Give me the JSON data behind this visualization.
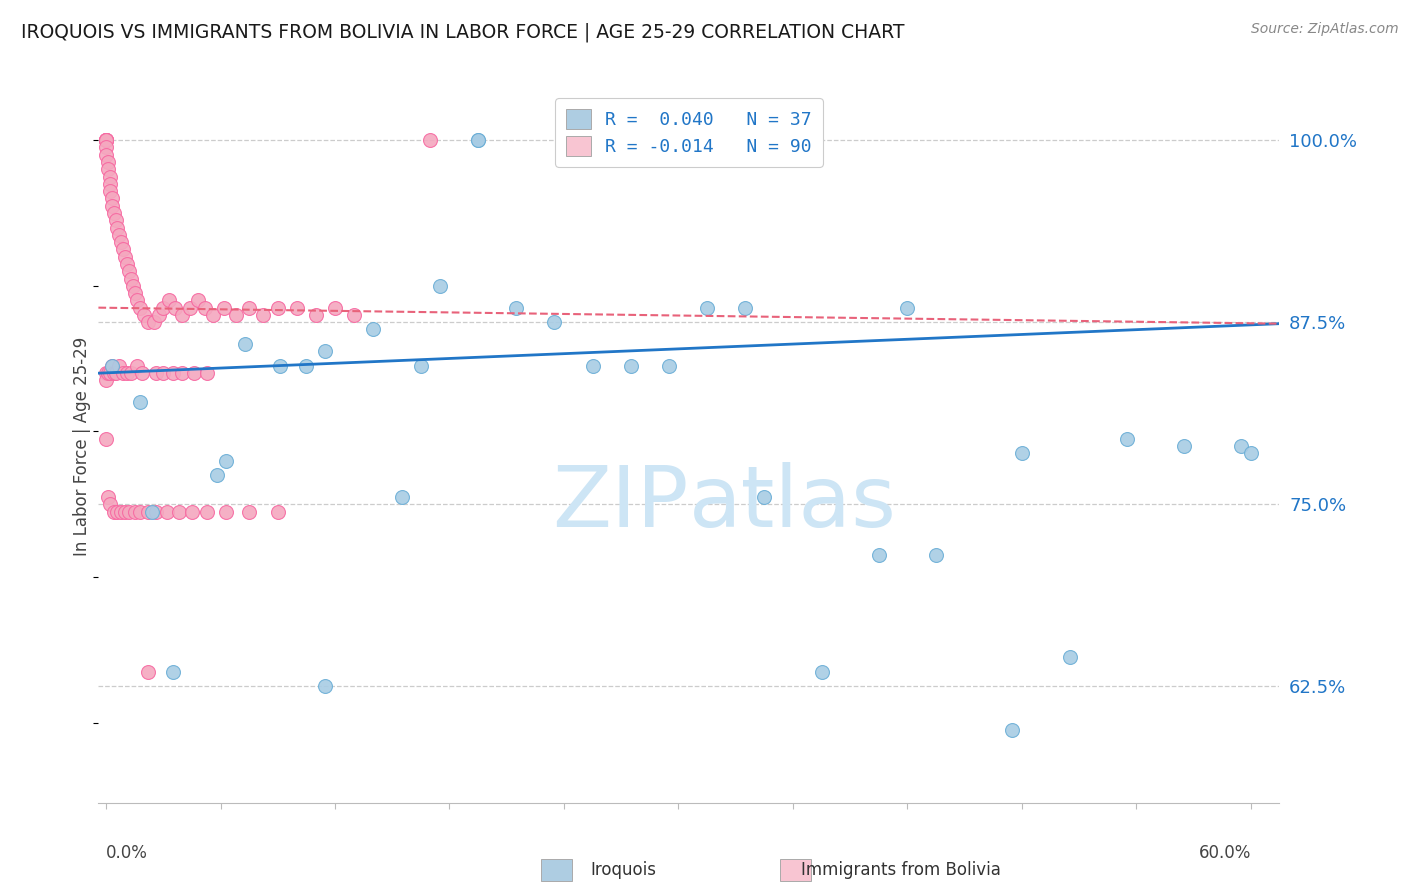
{
  "title": "IROQUOIS VS IMMIGRANTS FROM BOLIVIA IN LABOR FORCE | AGE 25-29 CORRELATION CHART",
  "source": "Source: ZipAtlas.com",
  "ylabel": "In Labor Force | Age 25-29",
  "ytick_values": [
    0.625,
    0.75,
    0.875,
    1.0
  ],
  "ytick_labels": [
    "62.5%",
    "75.0%",
    "87.5%",
    "100.0%"
  ],
  "xmin": -0.004,
  "xmax": 0.615,
  "ymin": 0.545,
  "ymax": 1.035,
  "blue_color": "#a8cce4",
  "pink_color": "#f4a8bf",
  "blue_edge": "#6aaed6",
  "pink_edge": "#f768a1",
  "blue_line_color": "#2176c7",
  "pink_line_color": "#e8627a",
  "legend_blue_fill": "#aecde2",
  "legend_pink_fill": "#f8c5d2",
  "watermark_color": "#cde5f5",
  "legend_text_color": "#2176c7",
  "right_tick_color": "#2176c7",
  "gridline_color": "#cccccc",
  "background_color": "#ffffff",
  "legend_text_blue": "R =  0.040   N = 37",
  "legend_text_pink": "R = -0.014   N = 90",
  "R_blue": 0.04,
  "N_blue": 37,
  "R_pink": -0.014,
  "N_pink": 90,
  "blue_x": [
    0.003,
    0.018,
    0.024,
    0.035,
    0.058,
    0.063,
    0.073,
    0.091,
    0.105,
    0.115,
    0.14,
    0.155,
    0.165,
    0.175,
    0.195,
    0.215,
    0.235,
    0.255,
    0.275,
    0.295,
    0.315,
    0.345,
    0.375,
    0.405,
    0.435,
    0.475,
    0.505,
    0.535,
    0.565,
    0.595,
    0.115,
    0.195,
    0.245,
    0.335,
    0.42,
    0.48,
    0.6
  ],
  "blue_y": [
    0.845,
    0.82,
    0.745,
    0.635,
    0.77,
    0.78,
    0.86,
    0.845,
    0.845,
    0.855,
    0.87,
    0.755,
    0.845,
    0.9,
    1.0,
    0.885,
    0.875,
    0.845,
    0.845,
    0.845,
    0.885,
    0.755,
    0.635,
    0.715,
    0.715,
    0.595,
    0.645,
    0.795,
    0.79,
    0.79,
    0.625,
    1.0,
    1.0,
    0.885,
    0.885,
    0.785,
    0.785
  ],
  "pink_x": [
    0.0,
    0.0,
    0.0,
    0.0,
    0.0,
    0.0,
    0.0,
    0.0,
    0.001,
    0.001,
    0.002,
    0.002,
    0.002,
    0.003,
    0.003,
    0.004,
    0.005,
    0.006,
    0.007,
    0.008,
    0.009,
    0.01,
    0.011,
    0.012,
    0.013,
    0.014,
    0.015,
    0.016,
    0.018,
    0.02,
    0.022,
    0.025,
    0.028,
    0.03,
    0.033,
    0.036,
    0.04,
    0.044,
    0.048,
    0.052,
    0.056,
    0.062,
    0.068,
    0.075,
    0.082,
    0.09,
    0.1,
    0.11,
    0.12,
    0.13,
    0.0,
    0.0,
    0.001,
    0.002,
    0.003,
    0.004,
    0.005,
    0.007,
    0.009,
    0.011,
    0.013,
    0.016,
    0.019,
    0.022,
    0.026,
    0.03,
    0.035,
    0.04,
    0.046,
    0.053,
    0.0,
    0.001,
    0.002,
    0.004,
    0.006,
    0.008,
    0.01,
    0.012,
    0.015,
    0.018,
    0.022,
    0.026,
    0.032,
    0.038,
    0.045,
    0.053,
    0.063,
    0.075,
    0.09,
    0.17
  ],
  "pink_y": [
    1.0,
    1.0,
    1.0,
    1.0,
    1.0,
    1.0,
    0.995,
    0.99,
    0.985,
    0.98,
    0.975,
    0.97,
    0.965,
    0.96,
    0.955,
    0.95,
    0.945,
    0.94,
    0.935,
    0.93,
    0.925,
    0.92,
    0.915,
    0.91,
    0.905,
    0.9,
    0.895,
    0.89,
    0.885,
    0.88,
    0.875,
    0.875,
    0.88,
    0.885,
    0.89,
    0.885,
    0.88,
    0.885,
    0.89,
    0.885,
    0.88,
    0.885,
    0.88,
    0.885,
    0.88,
    0.885,
    0.885,
    0.88,
    0.885,
    0.88,
    0.84,
    0.835,
    0.84,
    0.84,
    0.845,
    0.84,
    0.84,
    0.845,
    0.84,
    0.84,
    0.84,
    0.845,
    0.84,
    0.635,
    0.84,
    0.84,
    0.84,
    0.84,
    0.84,
    0.84,
    0.795,
    0.755,
    0.75,
    0.745,
    0.745,
    0.745,
    0.745,
    0.745,
    0.745,
    0.745,
    0.745,
    0.745,
    0.745,
    0.745,
    0.745,
    0.745,
    0.745,
    0.745,
    0.745,
    1.0
  ]
}
